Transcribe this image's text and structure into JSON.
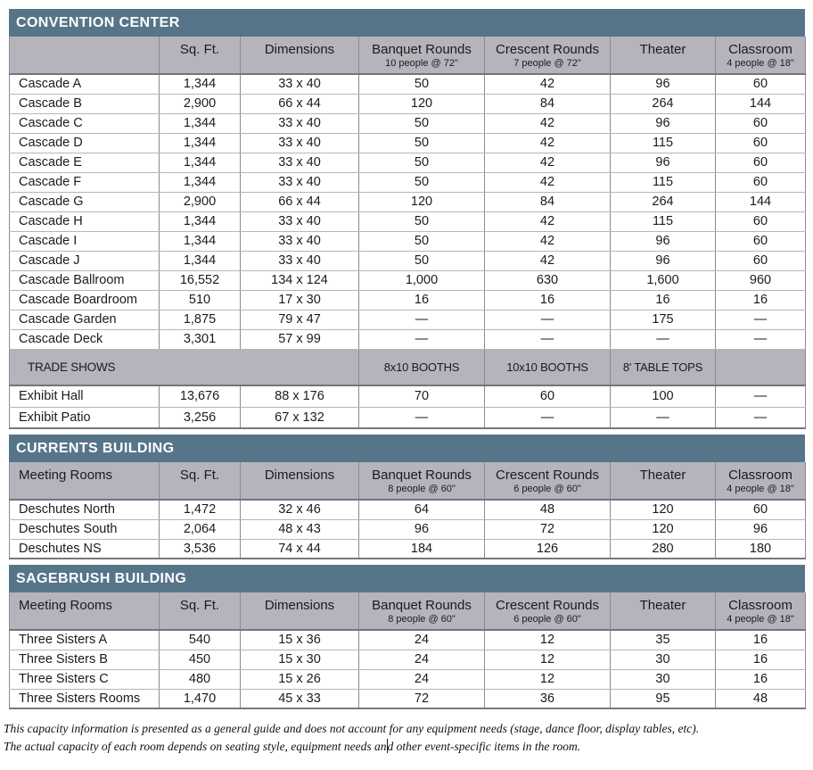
{
  "colors": {
    "band_background": "#567589",
    "band_text": "#ffffff",
    "header_background": "#b5b4bd",
    "dark_border": "#74747c",
    "mid_border": "#8c8c8c",
    "light_border": "#b6b6b6",
    "text": "#1b1b1b"
  },
  "sections": [
    {
      "title": "CONVENTION CENTER",
      "columns": [
        {
          "label": "",
          "sub": ""
        },
        {
          "label": "Sq. Ft.",
          "sub": ""
        },
        {
          "label": "Dimensions",
          "sub": ""
        },
        {
          "label": "Banquet Rounds",
          "sub": "10 people @ 72\""
        },
        {
          "label": "Crescent Rounds",
          "sub": "7 people @ 72\""
        },
        {
          "label": "Theater",
          "sub": ""
        },
        {
          "label": "Classroom",
          "sub": "4 people @ 18\""
        }
      ],
      "rows": [
        {
          "name": "Cascade A",
          "cells": [
            "1,344",
            "33 x 40",
            "50",
            "42",
            "96",
            "60"
          ]
        },
        {
          "name": "Cascade B",
          "cells": [
            "2,900",
            "66 x 44",
            "120",
            "84",
            "264",
            "144"
          ]
        },
        {
          "name": "Cascade C",
          "cells": [
            "1,344",
            "33 x 40",
            "50",
            "42",
            "96",
            "60"
          ]
        },
        {
          "name": "Cascade D",
          "cells": [
            "1,344",
            "33 x 40",
            "50",
            "42",
            "115",
            "60"
          ]
        },
        {
          "name": "Cascade E",
          "cells": [
            "1,344",
            "33 x 40",
            "50",
            "42",
            "96",
            "60"
          ]
        },
        {
          "name": "Cascade F",
          "cells": [
            "1,344",
            "33 x 40",
            "50",
            "42",
            "115",
            "60"
          ]
        },
        {
          "name": "Cascade G",
          "cells": [
            "2,900",
            "66 x 44",
            "120",
            "84",
            "264",
            "144"
          ]
        },
        {
          "name": "Cascade H",
          "cells": [
            "1,344",
            "33 x 40",
            "50",
            "42",
            "115",
            "60"
          ]
        },
        {
          "name": "Cascade I",
          "cells": [
            "1,344",
            "33 x 40",
            "50",
            "42",
            "96",
            "60"
          ]
        },
        {
          "name": "Cascade J",
          "cells": [
            "1,344",
            "33 x 40",
            "50",
            "42",
            "96",
            "60"
          ]
        },
        {
          "name": "Cascade Ballroom",
          "cells": [
            "16,552",
            "134 x 124",
            "1,000",
            "630",
            "1,600",
            "960"
          ]
        },
        {
          "name": "Cascade Boardroom",
          "cells": [
            "510",
            "17 x 30",
            "16",
            "16",
            "16",
            "16"
          ]
        },
        {
          "name": "Cascade Garden",
          "cells": [
            "1,875",
            "79 x 47",
            "—",
            "—",
            "175",
            "—"
          ]
        },
        {
          "name": "Cascade Deck",
          "cells": [
            "3,301",
            "57 x 99",
            "—",
            "—",
            "—",
            "—"
          ]
        }
      ],
      "trade_shows": {
        "label": "TRADE SHOWS",
        "booth_columns": [
          "8x10 BOOTHS",
          "10x10 BOOTHS",
          "8' TABLE TOPS",
          ""
        ]
      },
      "trade_rows": [
        {
          "name": "Exhibit Hall",
          "cells": [
            "13,676",
            "88 x 176",
            "70",
            "60",
            "100",
            "—"
          ]
        },
        {
          "name": "Exhibit Patio",
          "cells": [
            "3,256",
            "67 x 132",
            "—",
            "—",
            "—",
            "—"
          ]
        }
      ]
    },
    {
      "title": "CURRENTS BUILDING",
      "columns": [
        {
          "label": "Meeting Rooms",
          "sub": ""
        },
        {
          "label": "Sq. Ft.",
          "sub": ""
        },
        {
          "label": "Dimensions",
          "sub": ""
        },
        {
          "label": "Banquet Rounds",
          "sub": "8 people @ 60\""
        },
        {
          "label": "Crescent Rounds",
          "sub": "6 people @ 60\""
        },
        {
          "label": "Theater",
          "sub": ""
        },
        {
          "label": "Classroom",
          "sub": "4 people @ 18\""
        }
      ],
      "rows": [
        {
          "name": "Deschutes North",
          "cells": [
            "1,472",
            "32 x 46",
            "64",
            "48",
            "120",
            "60"
          ]
        },
        {
          "name": "Deschutes South",
          "cells": [
            "2,064",
            "48 x 43",
            "96",
            "72",
            "120",
            "96"
          ]
        },
        {
          "name": "Deschutes NS",
          "cells": [
            "3,536",
            "74 x 44",
            "184",
            "126",
            "280",
            "180"
          ]
        }
      ]
    },
    {
      "title": "SAGEBRUSH BUILDING",
      "columns": [
        {
          "label": "Meeting Rooms",
          "sub": ""
        },
        {
          "label": "Sq. Ft.",
          "sub": ""
        },
        {
          "label": "Dimensions",
          "sub": ""
        },
        {
          "label": "Banquet Rounds",
          "sub": "8 people @ 60\""
        },
        {
          "label": "Crescent Rounds",
          "sub": "6 people @ 60\""
        },
        {
          "label": "Theater",
          "sub": ""
        },
        {
          "label": "Classroom",
          "sub": "4 people @ 18\""
        }
      ],
      "rows": [
        {
          "name": "Three Sisters A",
          "cells": [
            "540",
            "15 x 36",
            "24",
            "12",
            "35",
            "16"
          ]
        },
        {
          "name": "Three Sisters B",
          "cells": [
            "450",
            "15 x 30",
            "24",
            "12",
            "30",
            "16"
          ]
        },
        {
          "name": "Three Sisters C",
          "cells": [
            "480",
            "15 x 26",
            "24",
            "12",
            "30",
            "16"
          ]
        },
        {
          "name": "Three Sisters Rooms",
          "cells": [
            "1,470",
            "45 x 33",
            "72",
            "36",
            "95",
            "48"
          ]
        }
      ]
    }
  ],
  "footer": {
    "line1": "This capacity information is presented as a general guide and does not account for any equipment needs (stage, dance floor, display tables, etc).",
    "line2a": "The actual capacity of each room depends on seating style, equipment needs an",
    "line2b": "d other event-specific items in the room."
  }
}
